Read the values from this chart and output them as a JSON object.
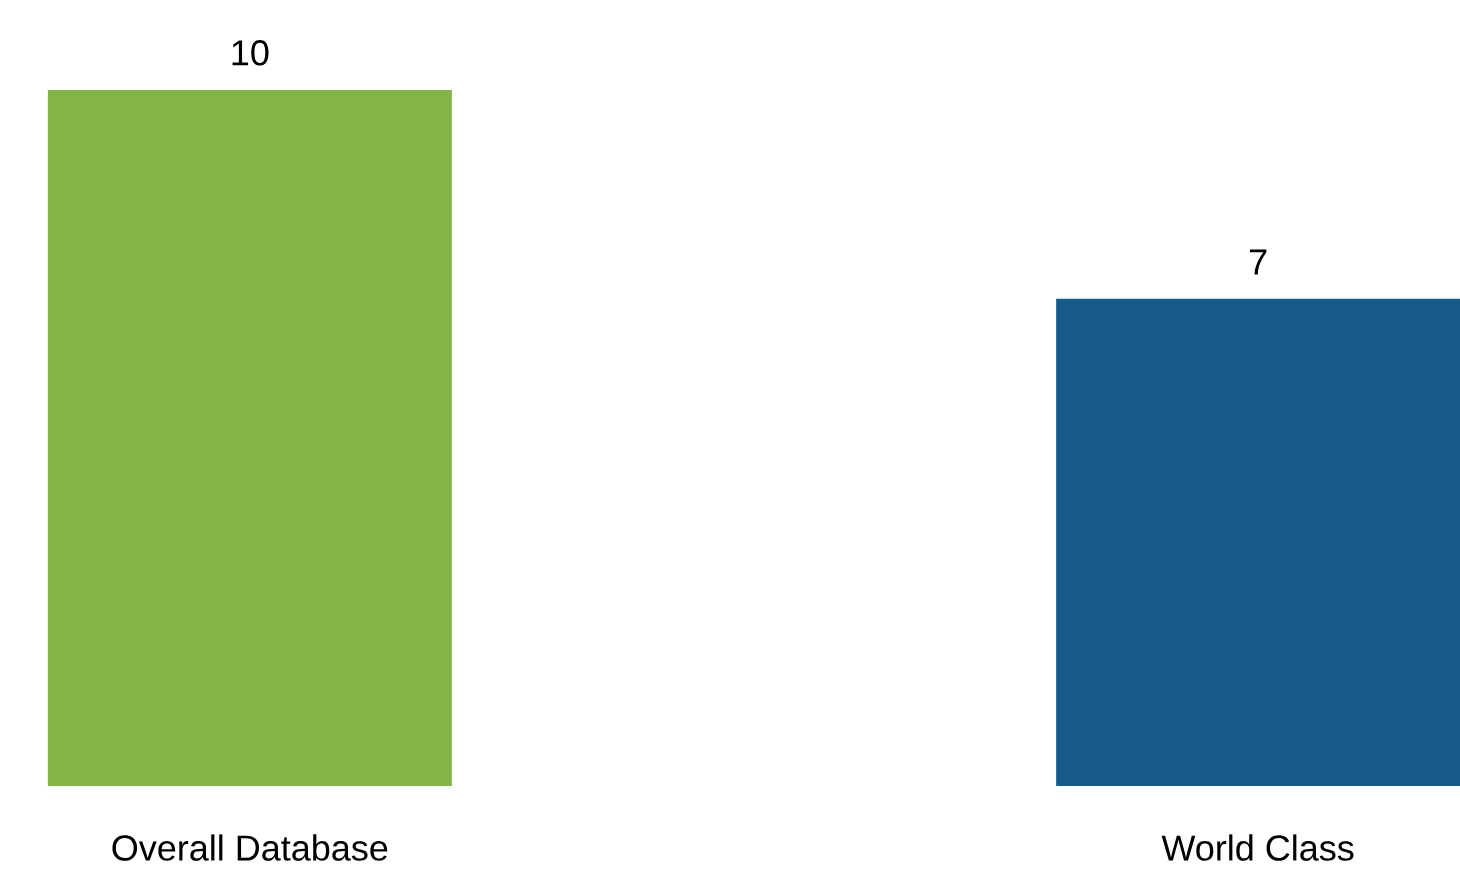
{
  "chart_data": {
    "type": "bar",
    "categories": [
      "Overall Database",
      "World Class"
    ],
    "values": [
      10,
      7
    ],
    "colors": [
      "#84b443",
      "#165a8a"
    ],
    "data_labels": true
  }
}
